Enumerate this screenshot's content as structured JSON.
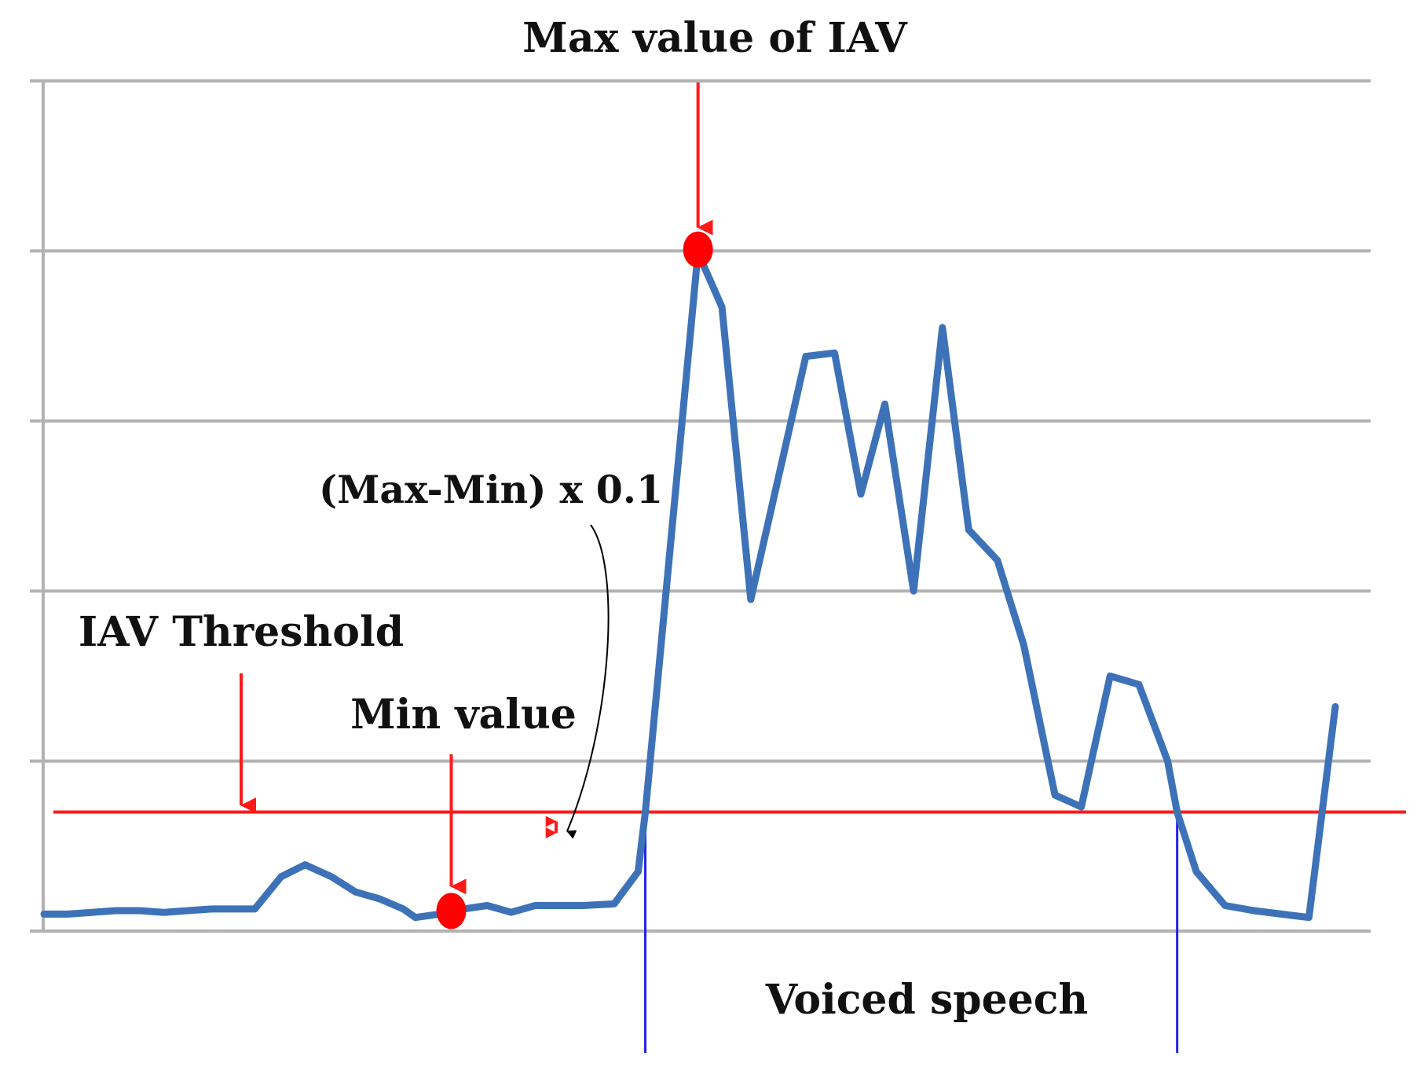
{
  "chart_data": {
    "type": "line",
    "ylim": [
      0,
      5
    ],
    "grid": true,
    "gridlines_y": [
      0,
      1,
      2,
      3,
      4,
      5
    ],
    "threshold": 0.7,
    "series": [
      {
        "color": "#3d72b8",
        "points": [
          [
            2,
            0.1
          ],
          [
            3,
            0.1
          ],
          [
            4,
            0.11
          ],
          [
            5,
            0.12
          ],
          [
            6,
            0.12
          ],
          [
            7,
            0.11
          ],
          [
            8,
            0.12
          ],
          [
            9,
            0.13
          ],
          [
            10,
            0.13
          ],
          [
            10.8,
            0.13
          ],
          [
            11.9,
            0.32
          ],
          [
            12.9,
            0.39
          ],
          [
            14,
            0.32
          ],
          [
            15,
            0.23
          ],
          [
            16,
            0.19
          ],
          [
            17,
            0.13
          ],
          [
            17.5,
            0.08
          ],
          [
            18.5,
            0.1
          ],
          [
            19.5,
            0.13
          ],
          [
            20.5,
            0.15
          ],
          [
            21.5,
            0.11
          ],
          [
            22.5,
            0.15
          ],
          [
            23.5,
            0.15
          ],
          [
            24.5,
            0.15
          ],
          [
            25.8,
            0.16
          ],
          [
            26.8,
            0.35
          ],
          [
            27.1,
            0.7
          ],
          [
            29.3,
            3.99
          ],
          [
            30.3,
            3.67
          ],
          [
            31.5,
            1.95
          ],
          [
            33.8,
            3.38
          ],
          [
            35.0,
            3.4
          ],
          [
            36.1,
            2.57
          ],
          [
            37.1,
            3.1
          ],
          [
            38.3,
            2.0
          ],
          [
            39.5,
            3.55
          ],
          [
            40.6,
            2.36
          ],
          [
            41.8,
            2.18
          ],
          [
            42.9,
            1.68
          ],
          [
            44.2,
            0.8
          ],
          [
            45.3,
            0.73
          ],
          [
            46.5,
            1.5
          ],
          [
            47.7,
            1.45
          ],
          [
            48.9,
            1.0
          ],
          [
            49.3,
            0.7
          ],
          [
            50.1,
            0.35
          ],
          [
            51.3,
            0.15
          ],
          [
            52.5,
            0.12
          ],
          [
            54.8,
            0.08
          ],
          [
            55.9,
            1.32
          ]
        ]
      }
    ],
    "max_point": [
      29.3,
      3.99
    ],
    "min_point": [
      19.0,
      0.1
    ],
    "voiced_bounds": [
      27.1,
      49.3
    ]
  },
  "labels": {
    "max_label": "Max value of IAV",
    "formula_label": "(Max-Min) x 0.1",
    "threshold_label": "IAV Threshold",
    "min_label": "Min value",
    "voiced_label": "Voiced speech"
  },
  "colors": {
    "grid": "#b2b2b2",
    "axis": "#b2b2b2",
    "series": "#3d72b8",
    "threshold": "#ff1a1a",
    "marker": "#ff0000",
    "bound": "#2222ee",
    "leader": "#000000"
  }
}
